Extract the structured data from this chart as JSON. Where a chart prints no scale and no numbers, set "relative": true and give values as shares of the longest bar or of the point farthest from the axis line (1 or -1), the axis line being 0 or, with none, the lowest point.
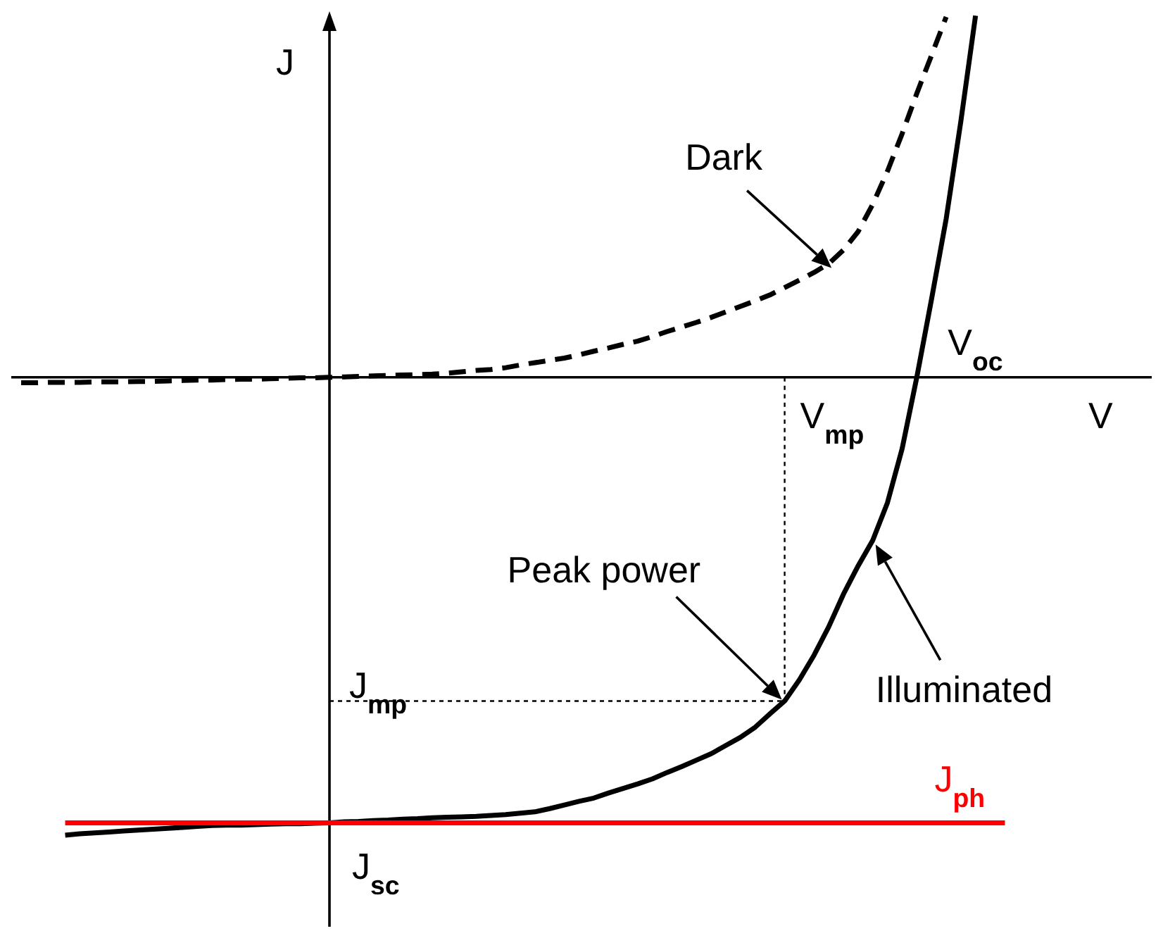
{
  "chart_data": {
    "type": "line",
    "relative": true,
    "xlabel": "V",
    "ylabel": "J",
    "legend": false,
    "categories": [
      null,
      null,
      null,
      null,
      null,
      null,
      null,
      null,
      null,
      null,
      null,
      null,
      null,
      null,
      null,
      null,
      null,
      null,
      null,
      null,
      null,
      null,
      null,
      null,
      null,
      null,
      null,
      null,
      null,
      null,
      null,
      null,
      null,
      null,
      null,
      null,
      null,
      null,
      null,
      null,
      null,
      null,
      null,
      null,
      null,
      null,
      null,
      null,
      null,
      null,
      null,
      null,
      null,
      null,
      null,
      null,
      null,
      null,
      null,
      null,
      null,
      null,
      null,
      null,
      null,
      null,
      null,
      null
    ],
    "series": [
      {
        "name": "Illuminated",
        "color": "#000000",
        "values": [
          null,
          null,
          null,
          -1.0,
          -0.997,
          -0.995,
          -0.993,
          -0.991,
          -0.989,
          -0.987,
          -0.985,
          -0.983,
          -0.981,
          -0.979,
          -0.978,
          -0.978,
          -0.977,
          -0.976,
          -0.975,
          -0.975,
          -0.974,
          -0.973,
          -0.971,
          -0.97,
          -0.968,
          -0.967,
          -0.965,
          -0.964,
          -0.962,
          -0.961,
          -0.96,
          -0.959,
          -0.957,
          -0.955,
          -0.952,
          -0.949,
          -0.942,
          -0.934,
          -0.926,
          -0.919,
          -0.908,
          -0.898,
          -0.888,
          -0.877,
          -0.863,
          -0.85,
          -0.836,
          -0.822,
          -0.804,
          -0.786,
          -0.764,
          -0.735,
          -0.707,
          -0.661,
          -0.607,
          -0.545,
          -0.474,
          -0.412,
          -0.356,
          -0.274,
          -0.156,
          0,
          0.17,
          0.346,
          0.559,
          0.79,
          null,
          null
        ]
      },
      {
        "name": "Dark",
        "color": "#000000",
        "line_style": "dashed",
        "values": [
          -0.012,
          -0.012,
          -0.011,
          -0.011,
          -0.011,
          -0.01,
          -0.01,
          -0.01,
          -0.009,
          -0.009,
          -0.008,
          -0.007,
          -0.006,
          -0.006,
          -0.005,
          -0.004,
          -0.004,
          -0.003,
          -0.002,
          -0.001,
          -0.001,
          0,
          0.001,
          0.002,
          0.003,
          0.004,
          0.005,
          0.006,
          0.007,
          0.009,
          0.012,
          0.015,
          0.017,
          0.021,
          0.027,
          0.032,
          0.037,
          0.042,
          0.049,
          0.057,
          0.064,
          0.072,
          0.079,
          0.089,
          0.1,
          0.11,
          0.12,
          0.131,
          0.143,
          0.155,
          0.167,
          0.18,
          0.196,
          0.212,
          0.229,
          0.248,
          0.278,
          0.318,
          0.378,
          0.45,
          0.532,
          0.62,
          0.703,
          0.787,
          null,
          null,
          null,
          null
        ]
      },
      {
        "name": "J$_{ph}$",
        "color": "#ff0000",
        "values": [
          null,
          null,
          null,
          -0.973,
          -0.973,
          -0.973,
          -0.973,
          -0.973,
          -0.973,
          -0.973,
          -0.973,
          -0.973,
          -0.973,
          -0.973,
          -0.973,
          -0.973,
          -0.973,
          -0.973,
          -0.973,
          -0.973,
          -0.973,
          -0.973,
          -0.973,
          -0.973,
          -0.973,
          -0.973,
          -0.973,
          -0.973,
          -0.973,
          -0.973,
          -0.973,
          -0.973,
          -0.973,
          -0.973,
          -0.973,
          -0.973,
          -0.973,
          -0.973,
          -0.973,
          -0.973,
          -0.973,
          -0.973,
          -0.973,
          -0.973,
          -0.973,
          -0.973,
          -0.973,
          -0.973,
          -0.973,
          -0.973,
          -0.973,
          -0.973,
          -0.973,
          -0.973,
          -0.973,
          -0.973,
          -0.973,
          -0.973,
          -0.973,
          -0.973,
          -0.973,
          -0.973,
          -0.973,
          -0.973,
          -0.973,
          -0.973,
          -0.973,
          -0.973
        ]
      }
    ],
    "annotations": [
      "Peak power",
      "V$_{mp}$",
      "V$_{oc}$",
      "J$_{mp}$",
      "J$_{sc}$"
    ]
  }
}
